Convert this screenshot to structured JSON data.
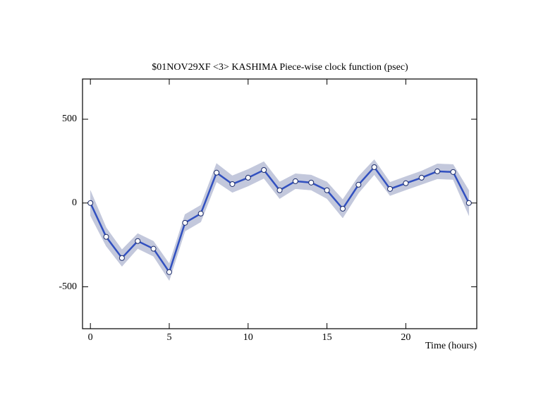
{
  "chart_data": {
    "type": "line",
    "title": "$01NOV29XF <3>  KASHIMA   Piece-wise clock function (psec)",
    "x_label": "Time (hours)",
    "x": [
      0,
      1,
      2,
      3,
      4,
      5,
      6,
      7,
      8,
      9,
      10,
      11,
      12,
      13,
      14,
      15,
      16,
      17,
      18,
      19,
      20,
      21,
      22,
      23,
      24
    ],
    "values": [
      0,
      -202,
      -328,
      -227,
      -273,
      -412,
      -118,
      -63,
      181,
      113,
      151,
      197,
      76,
      130,
      122,
      76,
      -34,
      109,
      214,
      84,
      118,
      151,
      189,
      185,
      0
    ],
    "errors": [
      75,
      55,
      50,
      45,
      45,
      50,
      50,
      50,
      55,
      50,
      50,
      50,
      50,
      45,
      45,
      50,
      55,
      50,
      45,
      40,
      40,
      40,
      45,
      45,
      75
    ],
    "color": "#3150c0",
    "band_color": "#c3c8dc",
    "xlim": [
      -0.5,
      24.5
    ],
    "xticks": [
      0,
      5,
      10,
      15,
      20
    ],
    "ylim": [
      -750,
      740
    ],
    "yticks": [
      -500,
      0,
      500
    ]
  }
}
